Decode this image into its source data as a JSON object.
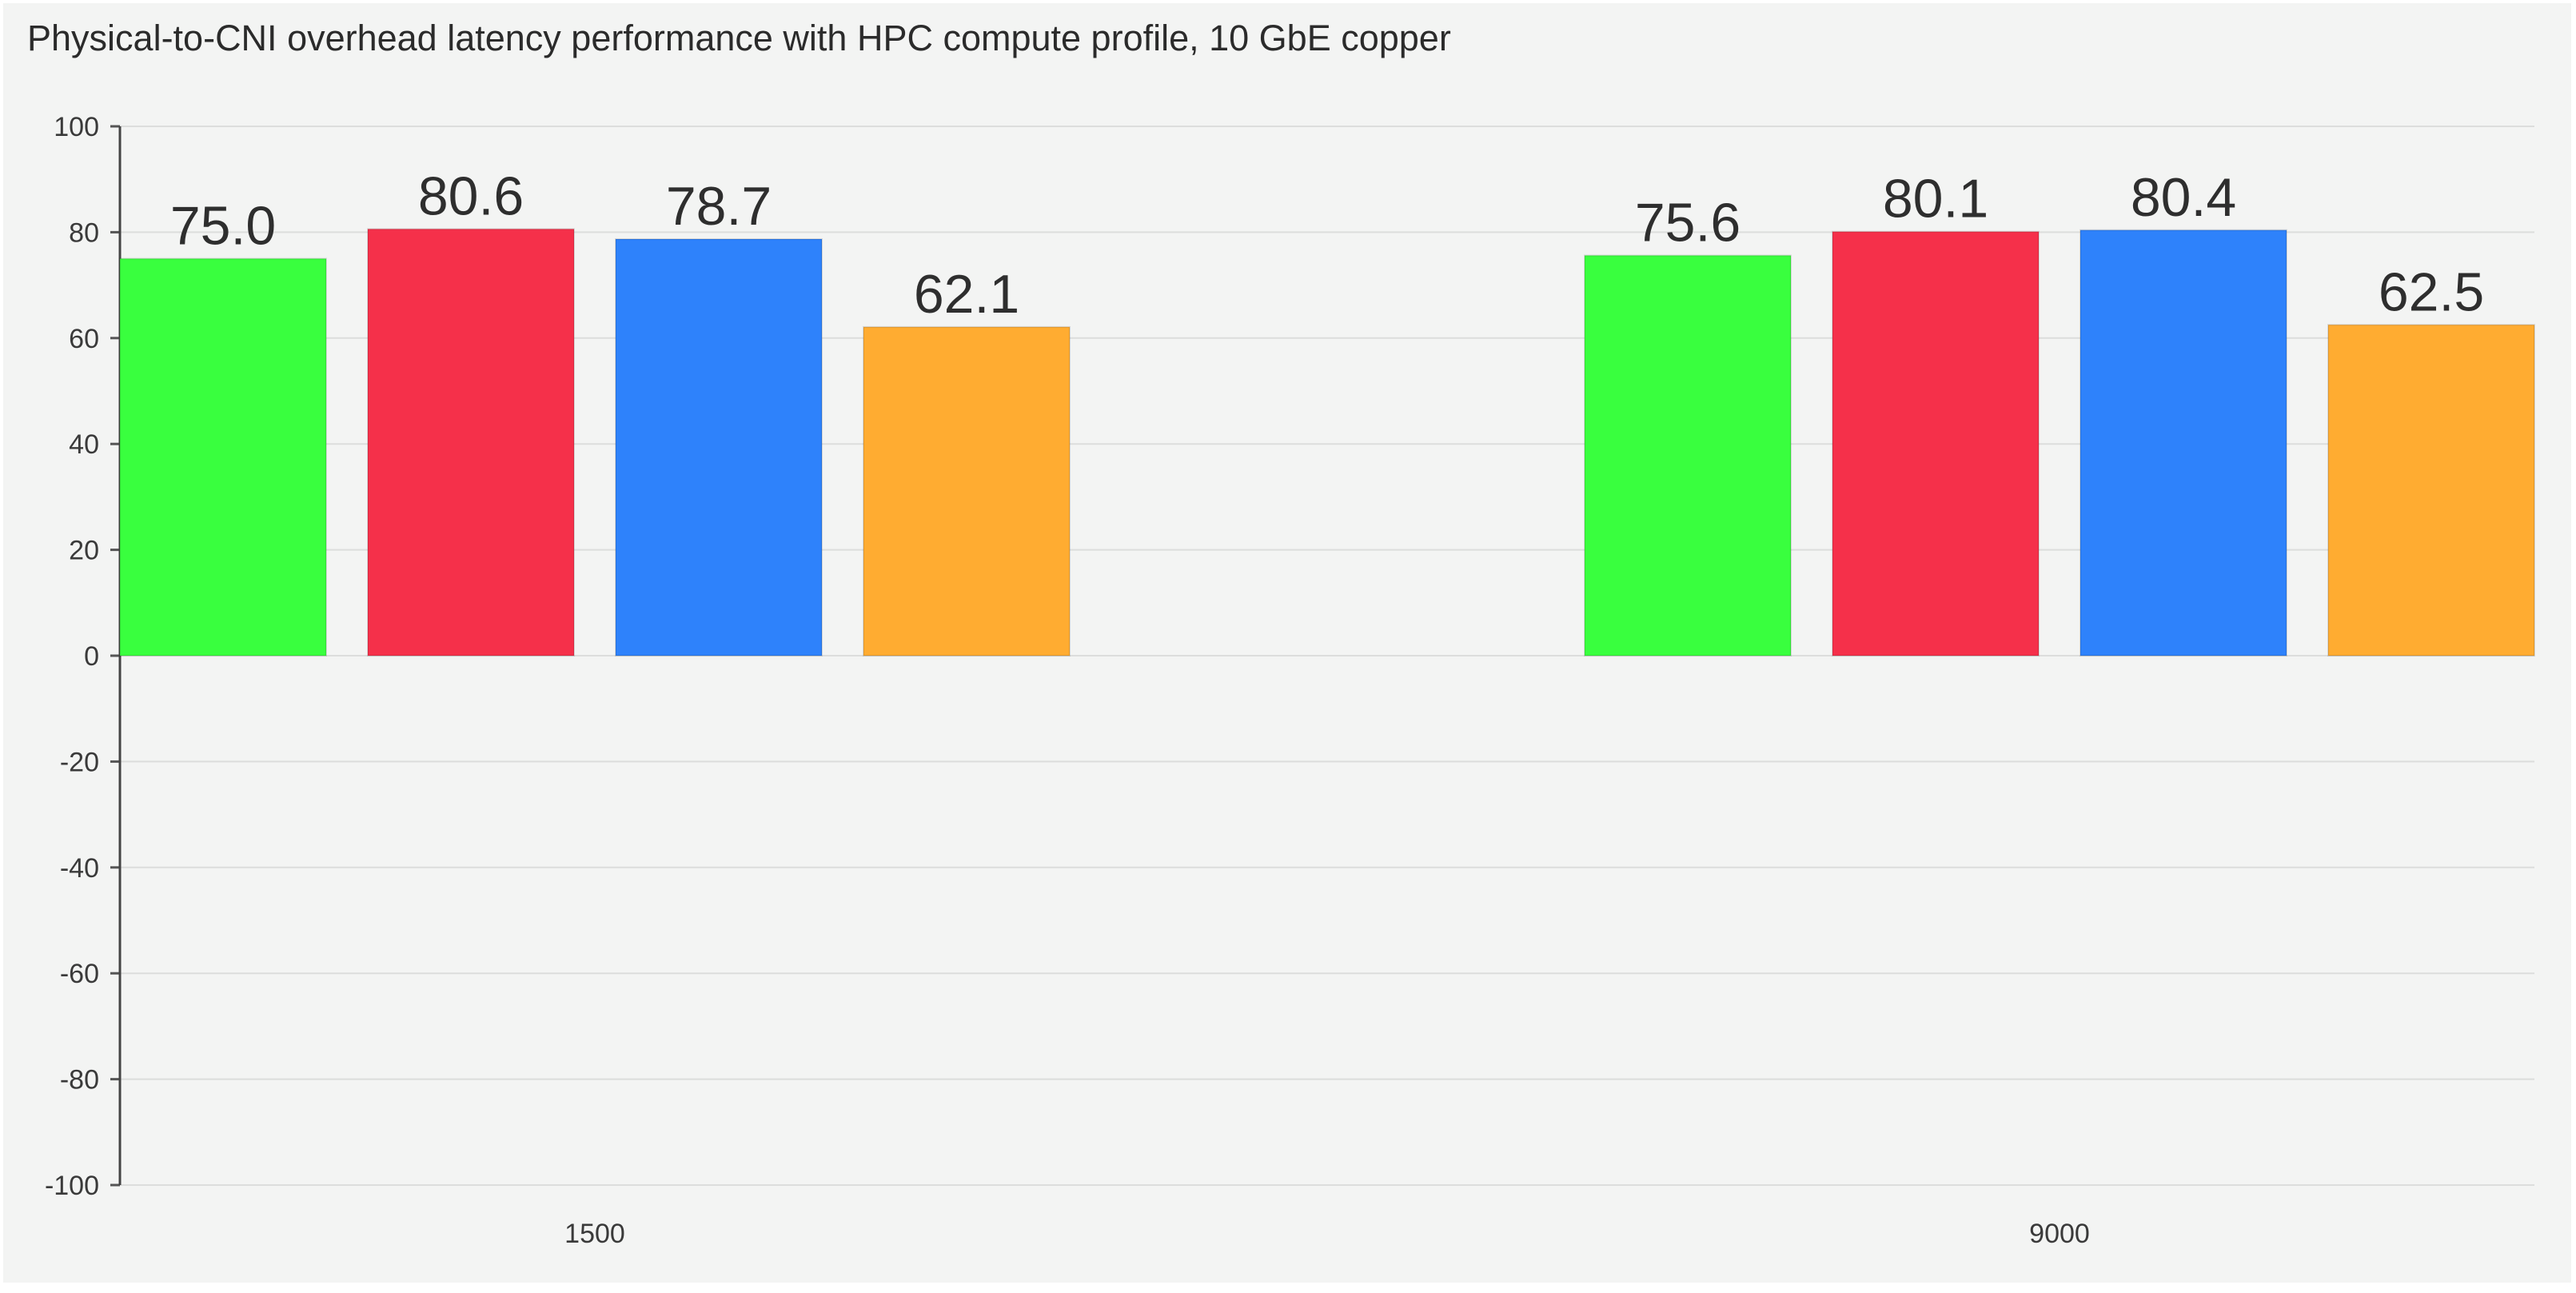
{
  "chart_data": {
    "type": "bar",
    "title": "Physical-to-CNI overhead latency performance with HPC compute profile, 10 GbE copper",
    "xlabel": "",
    "ylabel": "",
    "categories": [
      "1500",
      "9000"
    ],
    "series": [
      {
        "color": "#39ff3e",
        "values": [
          75.0,
          75.6
        ]
      },
      {
        "color": "#f5304a",
        "values": [
          80.6,
          80.1
        ]
      },
      {
        "color": "#2e82fb",
        "values": [
          78.7,
          80.4
        ]
      },
      {
        "color": "#ffac31",
        "values": [
          62.1,
          62.5
        ]
      }
    ],
    "value_labels": [
      [
        "75.0",
        "75.6"
      ],
      [
        "80.6",
        "80.1"
      ],
      [
        "78.7",
        "80.4"
      ],
      [
        "62.1",
        "62.5"
      ]
    ],
    "ylim": [
      -100,
      100
    ],
    "yticks": [
      "100",
      "80",
      "60",
      "40",
      "20",
      "0",
      "-20",
      "-40",
      "-60",
      "-80",
      "-100"
    ],
    "grid": true,
    "legend": "none"
  }
}
